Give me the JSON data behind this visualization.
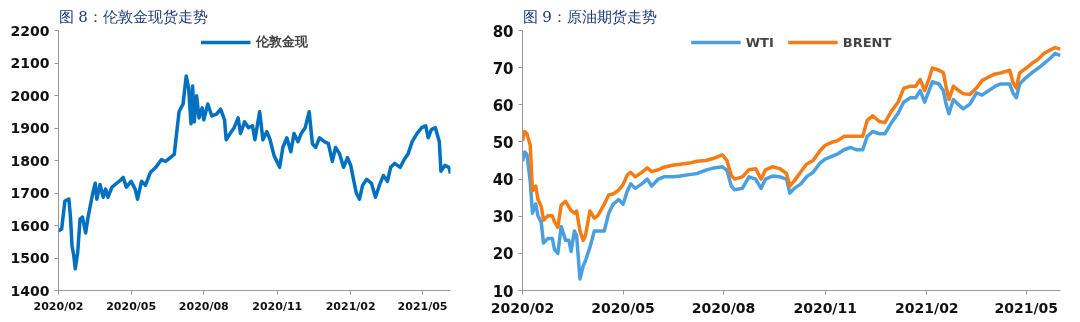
{
  "chart_data": [
    {
      "type": "line",
      "title": "图 8：伦敦金现货走势",
      "x": [
        "2020-02-01",
        "2020-02-05",
        "2020-02-09",
        "2020-02-14",
        "2020-02-16",
        "2020-02-18",
        "2020-02-20",
        "2020-02-22",
        "2020-02-25",
        "2020-02-28",
        "2020-03-02",
        "2020-03-06",
        "2020-03-09",
        "2020-03-12",
        "2020-03-15",
        "2020-03-18",
        "2020-03-20",
        "2020-03-24",
        "2020-03-28",
        "2020-03-31",
        "2020-04-03",
        "2020-04-08",
        "2020-04-14",
        "2020-04-18",
        "2020-04-22",
        "2020-04-26",
        "2020-05-02",
        "2020-05-07",
        "2020-05-10",
        "2020-05-15",
        "2020-05-20",
        "2020-05-26",
        "2020-06-02",
        "2020-06-09",
        "2020-06-14",
        "2020-06-20",
        "2020-06-25",
        "2020-07-01",
        "2020-07-06",
        "2020-07-10",
        "2020-07-13",
        "2020-07-16",
        "2020-07-18",
        "2020-07-20",
        "2020-07-23",
        "2020-07-26",
        "2020-07-30",
        "2020-08-01",
        "2020-08-06",
        "2020-08-11",
        "2020-08-17",
        "2020-08-22",
        "2020-08-27",
        "2020-08-29",
        "2020-09-03",
        "2020-09-08",
        "2020-09-13",
        "2020-09-16",
        "2020-09-21",
        "2020-09-26",
        "2020-10-01",
        "2020-10-04",
        "2020-10-10",
        "2020-10-14",
        "2020-10-19",
        "2020-10-23",
        "2020-10-28",
        "2020-11-04",
        "2020-11-08",
        "2020-11-13",
        "2020-11-18",
        "2020-11-22",
        "2020-11-27",
        "2020-12-01",
        "2020-12-06",
        "2020-12-11",
        "2020-12-15",
        "2020-12-19",
        "2020-12-24",
        "2020-12-30",
        "2021-01-04",
        "2021-01-09",
        "2021-01-13",
        "2021-01-18",
        "2021-01-23",
        "2021-01-28",
        "2021-02-01",
        "2021-02-05",
        "2021-02-08",
        "2021-02-12",
        "2021-02-16",
        "2021-02-21",
        "2021-02-27",
        "2021-03-04",
        "2021-03-09",
        "2021-03-14",
        "2021-03-19",
        "2021-03-23",
        "2021-03-28",
        "2021-04-04",
        "2021-04-09",
        "2021-04-14",
        "2021-04-19",
        "2021-04-25",
        "2021-05-01",
        "2021-05-06",
        "2021-05-09",
        "2021-05-13",
        "2021-05-18",
        "2021-05-23",
        "2021-05-25",
        "2021-05-30",
        "2021-06-04",
        "2021-06-06"
      ],
      "series": [
        {
          "name": "伦敦金现",
          "color": "#0070c0",
          "values": [
            1583,
            1590,
            1675,
            1681,
            1626,
            1535,
            1510,
            1467,
            1516,
            1620,
            1626,
            1577,
            1626,
            1663,
            1700,
            1730,
            1681,
            1726,
            1687,
            1712,
            1687,
            1718,
            1730,
            1738,
            1748,
            1718,
            1736,
            1712,
            1681,
            1736,
            1724,
            1763,
            1779,
            1803,
            1797,
            1809,
            1819,
            1950,
            1974,
            2060,
            2023,
            1913,
            2029,
            1919,
            1999,
            1931,
            1962,
            1925,
            1974,
            1937,
            1943,
            1958,
            1925,
            1864,
            1883,
            1901,
            1931,
            1883,
            1919,
            1901,
            1907,
            1864,
            1950,
            1864,
            1889,
            1864,
            1815,
            1779,
            1840,
            1870,
            1827,
            1883,
            1858,
            1883,
            1901,
            1950,
            1852,
            1840,
            1870,
            1858,
            1852,
            1797,
            1840,
            1821,
            1779,
            1809,
            1785,
            1736,
            1700,
            1681,
            1724,
            1742,
            1730,
            1687,
            1724,
            1754,
            1736,
            1779,
            1791,
            1779,
            1803,
            1821,
            1858,
            1883,
            1901,
            1907,
            1870,
            1895,
            1901,
            1858,
            1767,
            1785,
            1779,
            1760
          ]
        }
      ],
      "xlim": [
        "2020-02-01",
        "2021-06-06"
      ],
      "xticks": [
        {
          "value": "2020-02-01",
          "label": "2020/02"
        },
        {
          "value": "2020-05-02",
          "label": "2020/05"
        },
        {
          "value": "2020-08-01",
          "label": "2020/08"
        },
        {
          "value": "2020-11-01",
          "label": "2020/11"
        },
        {
          "value": "2021-02-01",
          "label": "2021/02"
        },
        {
          "value": "2021-05-02",
          "label": "2021/05"
        }
      ],
      "ylim": [
        1400,
        2200
      ],
      "yticks": [
        1400,
        1500,
        1600,
        1700,
        1800,
        1900,
        2000,
        2100,
        2200
      ],
      "grid": false,
      "legend": "top",
      "line_style": "solid",
      "marker": "none"
    },
    {
      "type": "line",
      "title": "图 9：原油期货走势",
      "x": [
        "2020-02-01",
        "2020-02-03",
        "2020-02-05",
        "2020-02-08",
        "2020-02-10",
        "2020-02-13",
        "2020-02-15",
        "2020-02-18",
        "2020-02-20",
        "2020-02-24",
        "2020-02-28",
        "2020-03-01",
        "2020-03-04",
        "2020-03-07",
        "2020-03-11",
        "2020-03-14",
        "2020-03-16",
        "2020-03-19",
        "2020-03-21",
        "2020-03-24",
        "2020-03-27",
        "2020-03-29",
        "2020-04-02",
        "2020-04-06",
        "2020-04-09",
        "2020-04-15",
        "2020-04-19",
        "2020-04-23",
        "2020-04-28",
        "2020-05-02",
        "2020-05-06",
        "2020-05-09",
        "2020-05-13",
        "2020-05-19",
        "2020-05-24",
        "2020-05-28",
        "2020-06-03",
        "2020-06-08",
        "2020-06-16",
        "2020-06-23",
        "2020-07-01",
        "2020-07-08",
        "2020-07-16",
        "2020-07-23",
        "2020-07-31",
        "2020-08-04",
        "2020-08-08",
        "2020-08-11",
        "2020-08-18",
        "2020-08-24",
        "2020-08-30",
        "2020-09-04",
        "2020-09-08",
        "2020-09-14",
        "2020-09-21",
        "2020-09-27",
        "2020-09-30",
        "2020-10-04",
        "2020-10-10",
        "2020-10-15",
        "2020-10-21",
        "2020-10-27",
        "2020-11-01",
        "2020-11-07",
        "2020-11-12",
        "2020-11-18",
        "2020-11-24",
        "2020-11-29",
        "2020-12-05",
        "2020-12-09",
        "2020-12-14",
        "2020-12-20",
        "2020-12-25",
        "2020-12-31",
        "2021-01-06",
        "2021-01-11",
        "2021-01-17",
        "2021-01-22",
        "2021-01-26",
        "2021-01-30",
        "2021-02-03",
        "2021-02-06",
        "2021-02-12",
        "2021-02-16",
        "2021-02-18",
        "2021-02-21",
        "2021-02-25",
        "2021-03-01",
        "2021-03-06",
        "2021-03-12",
        "2021-03-18",
        "2021-03-23",
        "2021-03-29",
        "2021-04-04",
        "2021-04-09",
        "2021-04-17",
        "2021-04-20",
        "2021-04-23",
        "2021-04-26",
        "2021-05-02",
        "2021-05-07",
        "2021-05-13",
        "2021-05-18",
        "2021-05-24",
        "2021-05-28",
        "2021-06-02"
      ],
      "series": [
        {
          "name": "WTI",
          "color": "#4b9fe0",
          "values": [
            44.8,
            47.3,
            46.7,
            39.4,
            30.8,
            33.3,
            30.1,
            28.3,
            22.8,
            24,
            24,
            21,
            20,
            27.2,
            23.5,
            23.5,
            20.5,
            26,
            24.8,
            13.1,
            16.7,
            18,
            21.6,
            26,
            26,
            26,
            30.8,
            33.2,
            34.5,
            33.2,
            36.9,
            38.7,
            37.5,
            38.7,
            40,
            38.1,
            40,
            40.6,
            40.6,
            40.8,
            41.2,
            41.5,
            42.4,
            43,
            43.3,
            42.4,
            38.1,
            37.1,
            37.5,
            40.6,
            40,
            37.5,
            40,
            40.8,
            40.6,
            40,
            36.2,
            37.5,
            38.7,
            40.6,
            41.8,
            44.2,
            45.4,
            46.1,
            46.7,
            47.9,
            48.5,
            47.9,
            47.9,
            51.5,
            52.8,
            52.2,
            52.2,
            55.2,
            57.7,
            60.7,
            61.9,
            61.9,
            63.8,
            60.7,
            63.8,
            66.2,
            65.6,
            63.8,
            60.7,
            57.6,
            61.4,
            60.2,
            58.9,
            60.2,
            63.2,
            62.6,
            63.8,
            65,
            65.6,
            65.6,
            63.2,
            61.9,
            65.6,
            67.4,
            68.6,
            69.9,
            71.1,
            72.6,
            73.8,
            73.3
          ]
        },
        {
          "name": "BRENT",
          "color": "#f57c14",
          "values": [
            50.3,
            52.8,
            52.2,
            49.1,
            36.9,
            38.1,
            34.5,
            32.6,
            28.9,
            30.1,
            30.1,
            28.5,
            27,
            33,
            34,
            32.5,
            31.5,
            30.8,
            31.4,
            26,
            23.5,
            24.8,
            31.4,
            29.5,
            30.1,
            33.2,
            35.7,
            36,
            37,
            38.5,
            41.2,
            41.8,
            40.6,
            41.8,
            43,
            42,
            42.5,
            43.2,
            43.7,
            44,
            44.3,
            44.8,
            45,
            45.6,
            46.5,
            45,
            41,
            40,
            40.6,
            42.5,
            42.8,
            40,
            42.5,
            43.3,
            42.8,
            41.5,
            38.1,
            39.5,
            42,
            44,
            45,
            47.5,
            49.1,
            49.9,
            50.3,
            51.5,
            51.5,
            51.5,
            51.5,
            55.8,
            57,
            55.5,
            55.2,
            58.3,
            60.7,
            64.4,
            65,
            65,
            66.8,
            63.8,
            67,
            69.9,
            69.3,
            68.6,
            65.5,
            61.4,
            65,
            64,
            63,
            62.8,
            64.5,
            66.5,
            67.5,
            68.3,
            68.6,
            69.3,
            66,
            64.5,
            68.6,
            69.9,
            71.1,
            72.3,
            73.8,
            74.8,
            75.4,
            75
          ]
        }
      ],
      "xlim": [
        "2020-02-01",
        "2021-06-02"
      ],
      "xticks": [
        {
          "value": "2020-02-01",
          "label": "2020/02"
        },
        {
          "value": "2020-05-02",
          "label": "2020/05"
        },
        {
          "value": "2020-08-01",
          "label": "2020/08"
        },
        {
          "value": "2020-11-01",
          "label": "2020/11"
        },
        {
          "value": "2021-02-01",
          "label": "2021/02"
        },
        {
          "value": "2021-05-02",
          "label": "2021/05"
        }
      ],
      "ylim": [
        10,
        80
      ],
      "yticks": [
        10,
        20,
        30,
        40,
        50,
        60,
        70,
        80
      ],
      "grid": false,
      "legend": "top",
      "line_style": "solid",
      "marker": "none"
    }
  ]
}
